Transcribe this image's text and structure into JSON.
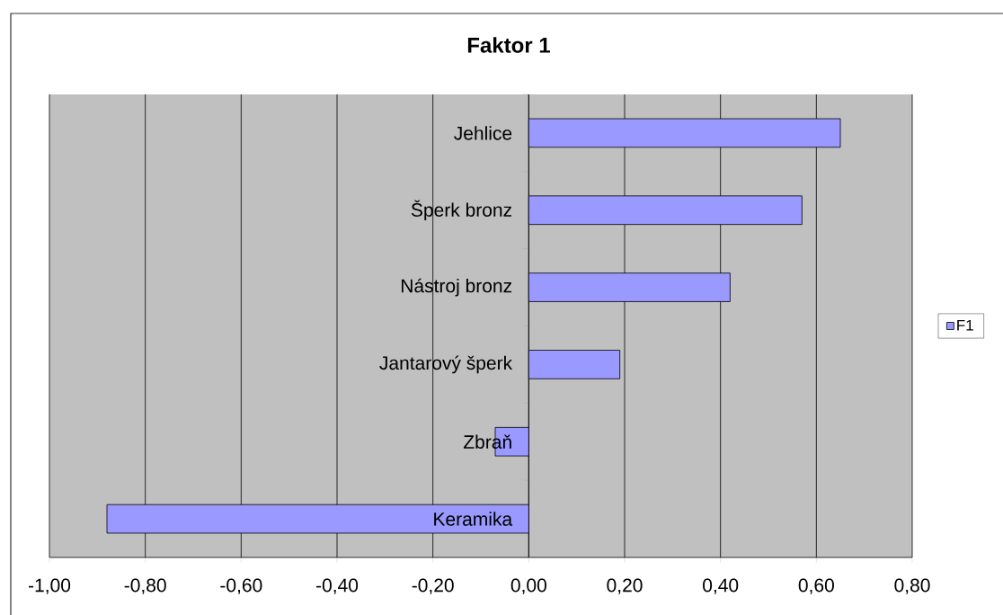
{
  "chart_data": {
    "type": "bar",
    "title": "Faktor 1",
    "orientation": "horizontal",
    "categories": [
      "Jehlice",
      "Šperk bronz",
      "Nástroj bronz",
      "Jantarový šperk",
      "Zbraň",
      "Keramika"
    ],
    "series": [
      {
        "name": "F1",
        "color": "#9999ff",
        "values": [
          0.65,
          0.57,
          0.42,
          0.19,
          -0.07,
          -0.88
        ]
      }
    ],
    "xlim": [
      -1,
      0.8
    ],
    "xticks": [
      {
        "value": -1,
        "label": "-1,00"
      },
      {
        "value": -0.8,
        "label": "-0,80"
      },
      {
        "value": -0.6,
        "label": "-0,60"
      },
      {
        "value": -0.4,
        "label": "-0,40"
      },
      {
        "value": -0.2,
        "label": "-0,20"
      },
      {
        "value": 0,
        "label": "0,00"
      },
      {
        "value": 0.2,
        "label": "0,20"
      },
      {
        "value": 0.4,
        "label": "0,40"
      },
      {
        "value": 0.6,
        "label": "0,60"
      },
      {
        "value": 0.8,
        "label": "0,80"
      }
    ],
    "grid": "x",
    "legend": "right"
  }
}
